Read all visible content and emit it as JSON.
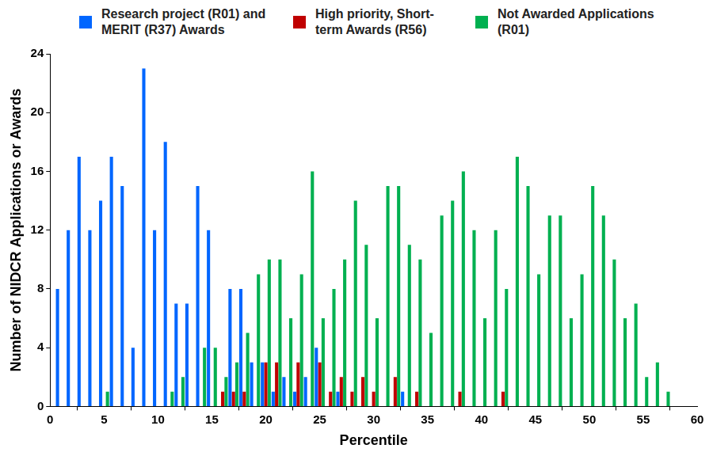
{
  "chart_data": {
    "type": "bar",
    "x_label": "Percentile",
    "y_label": "Number of NIDCR Applications or Awards",
    "x": [
      1,
      2,
      3,
      4,
      5,
      6,
      7,
      8,
      9,
      10,
      11,
      12,
      13,
      14,
      15,
      16,
      17,
      18,
      19,
      20,
      21,
      22,
      23,
      24,
      25,
      26,
      27,
      28,
      29,
      30,
      31,
      32,
      33,
      34,
      35,
      36,
      37,
      38,
      39,
      40,
      41,
      42,
      43,
      44,
      45,
      46,
      47,
      48,
      49,
      50,
      51,
      52,
      53,
      54,
      55,
      56,
      57
    ],
    "series": [
      {
        "name": "Research project (R01) and MERIT (R37) Awards",
        "color": "#0066ff",
        "values": [
          8,
          12,
          17,
          12,
          14,
          17,
          15,
          4,
          23,
          12,
          18,
          7,
          7,
          15,
          12,
          0,
          8,
          8,
          3,
          3,
          1,
          2,
          1,
          2,
          4,
          0,
          1,
          0,
          0,
          0,
          0,
          0,
          1,
          0,
          0,
          0,
          0,
          0,
          0,
          0,
          0,
          0,
          0,
          0,
          0,
          0,
          0,
          0,
          0,
          0,
          0,
          0,
          0,
          0,
          0,
          0,
          0
        ]
      },
      {
        "name": "High priority, Short-term Awards (R56)",
        "color": "#c00000",
        "values": [
          0,
          0,
          0,
          0,
          0,
          0,
          0,
          0,
          0,
          0,
          0,
          0,
          0,
          0,
          0,
          1,
          1,
          1,
          0,
          3,
          3,
          0,
          3,
          0,
          3,
          1,
          2,
          1,
          2,
          1,
          0,
          2,
          0,
          1,
          0,
          0,
          0,
          1,
          0,
          0,
          0,
          1,
          0,
          0,
          0,
          0,
          0,
          0,
          0,
          0,
          0,
          0,
          0,
          0,
          0,
          0,
          0
        ]
      },
      {
        "name": "Not Awarded Applications (R01)",
        "color": "#00b050",
        "values": [
          0,
          0,
          0,
          0,
          1,
          0,
          0,
          0,
          0,
          0,
          1,
          2,
          0,
          4,
          4,
          2,
          3,
          5,
          9,
          10,
          10,
          6,
          9,
          16,
          6,
          8,
          10,
          14,
          11,
          6,
          15,
          15,
          11,
          10,
          5,
          13,
          14,
          16,
          12,
          6,
          12,
          8,
          17,
          15,
          9,
          13,
          13,
          6,
          9,
          15,
          13,
          10,
          6,
          7,
          2,
          3,
          1
        ]
      }
    ],
    "xlim": [
      0,
      60
    ],
    "xticks": [
      0,
      5,
      10,
      15,
      20,
      25,
      30,
      35,
      40,
      45,
      50,
      55,
      60
    ],
    "ylim": [
      0,
      24
    ],
    "yticks": [
      0,
      4,
      8,
      12,
      16,
      20,
      24
    ],
    "grid": false,
    "legend": "top"
  }
}
